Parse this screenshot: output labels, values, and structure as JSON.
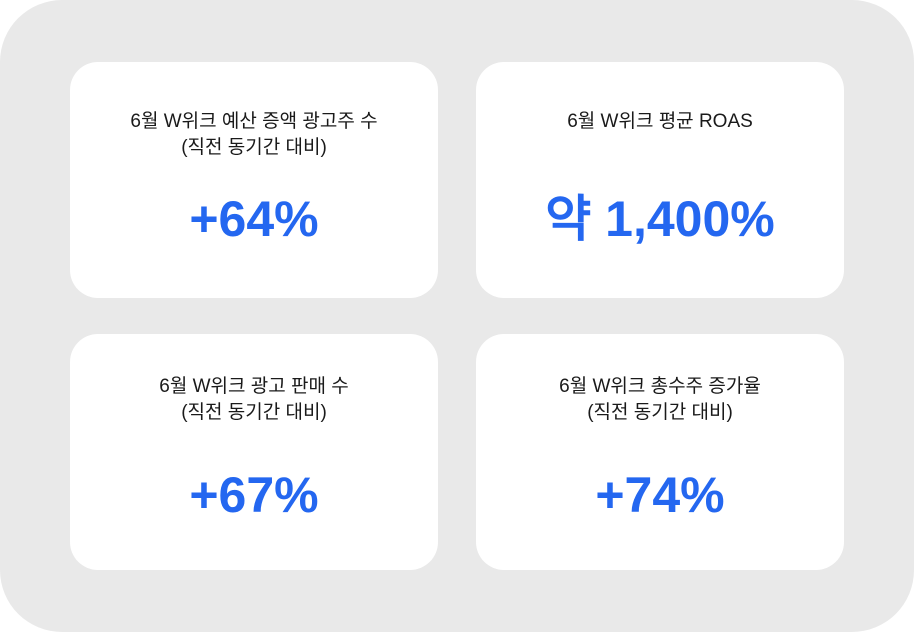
{
  "accent_color": "#2467f0",
  "cards": [
    {
      "title_line1": "6월 W위크 예산 증액 광고주 수",
      "title_line2": "(직전 동기간 대비)",
      "value": "+64%"
    },
    {
      "title_line1": "6월 W위크 평균 ROAS",
      "title_line2": "",
      "value": "약 1,400%"
    },
    {
      "title_line1": "6월 W위크 광고 판매 수",
      "title_line2": "(직전 동기간 대비)",
      "value": "+67%"
    },
    {
      "title_line1": "6월 W위크 총수주 증가율",
      "title_line2": "(직전 동기간 대비)",
      "value": "+74%"
    }
  ]
}
